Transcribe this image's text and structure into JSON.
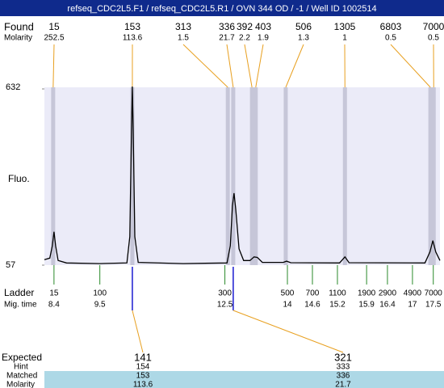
{
  "title": "refseq_CDC2L5.F1 / refseq_CDC2L5.R1 / OVN 344 OD  / -1 / Well ID 1002514",
  "chart_data": {
    "type": "electropherogram",
    "ylabel": "Fluo.",
    "ylim": [
      57,
      632
    ],
    "yticks": [
      57,
      632
    ],
    "xlim": [
      8.17,
      17.66
    ],
    "trace": {
      "x": [
        8.17,
        8.3,
        8.36,
        8.4,
        8.44,
        8.5,
        8.7,
        9.5,
        10.15,
        10.22,
        10.26,
        10.28,
        10.3,
        10.34,
        10.42,
        11.5,
        12.55,
        12.63,
        12.68,
        12.72,
        12.76,
        12.84,
        12.95,
        13.1,
        13.2,
        13.28,
        13.4,
        13.9,
        13.98,
        14.08,
        15.25,
        15.38,
        15.48,
        17.3,
        17.42,
        17.49,
        17.56,
        17.66
      ],
      "values": [
        75,
        80,
        120,
        166,
        120,
        72,
        64,
        62,
        64,
        150,
        500,
        640,
        500,
        150,
        66,
        62,
        64,
        120,
        250,
        292,
        240,
        110,
        72,
        72,
        84,
        82,
        66,
        66,
        70,
        65,
        64,
        84,
        65,
        64,
        100,
        137,
        100,
        72
      ]
    },
    "found": {
      "label": "Found",
      "molarity_label": "Molarity",
      "sizes": [
        15,
        153,
        313,
        336,
        392,
        403,
        506,
        1305,
        6803,
        7000
      ],
      "molarity": [
        252.5,
        113.6,
        1.5,
        21.7,
        2.2,
        1.9,
        1.3,
        1,
        0.5,
        0.5
      ],
      "times": [
        8.38,
        10.28,
        12.57,
        12.7,
        13.15,
        13.24,
        13.96,
        15.38,
        17.43,
        17.51
      ]
    },
    "ladder": {
      "label": "Ladder",
      "time_label": "Mig. time",
      "sizes": [
        15,
        100,
        300,
        500,
        700,
        1100,
        1900,
        2900,
        4900,
        7000
      ],
      "times": [
        8.4,
        9.5,
        12.5,
        14,
        14.6,
        15.2,
        15.9,
        16.4,
        17,
        17.5
      ]
    },
    "expected": {
      "label": "Expected",
      "hint_label": "Hint",
      "matched_label": "Matched",
      "molarity_label": "Molarity",
      "sizes": [
        141,
        321
      ],
      "hint": [
        154,
        333
      ],
      "matched": [
        153,
        336
      ],
      "molarity": [
        113.6,
        21.7
      ]
    }
  }
}
